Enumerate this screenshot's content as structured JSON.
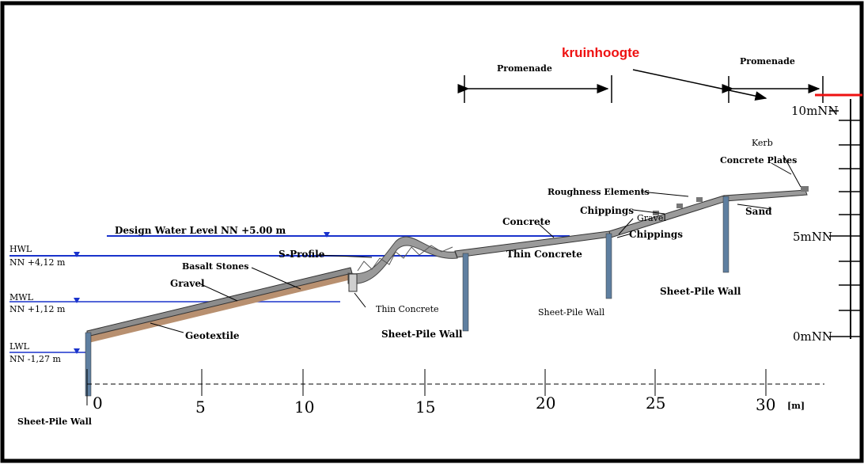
{
  "annotation": {
    "text": "kruinhoogte",
    "color": "#ee1111"
  },
  "promenades": [
    "Promenade",
    "Promenade"
  ],
  "water_levels": {
    "design": "Design Water Level NN +5.00 m",
    "hwl": [
      "HWL",
      "NN +4,12 m"
    ],
    "mwl": [
      "MWL",
      "NN +1,12 m"
    ],
    "lwl": [
      "LWL",
      "NN -1,27 m"
    ]
  },
  "labels": {
    "basalt": "Basalt Stones",
    "gravel": "Gravel",
    "geotextile": "Geotextile",
    "sprofile": "S-Profile",
    "thin_concrete_1": "Thin Concrete",
    "thin_concrete_2": "Thin Concrete",
    "concrete": "Concrete",
    "roughness": "Roughness Elements",
    "chippings_1": "Chippings",
    "chippings_2": "Chippings",
    "gravel_2": "Gravel",
    "kerb": "Kerb",
    "concrete_plates": "Concrete Plates",
    "sand": "Sand",
    "sheet_pile": [
      "Sheet-Pile Wall",
      "Sheet-Pile Wall",
      "Sheet-Pile Wall",
      "Sheet-Pile Wall"
    ]
  },
  "x_axis": {
    "ticks": [
      "0",
      "5",
      "10",
      "15",
      "20",
      "25",
      "30"
    ],
    "unit": "[m]"
  },
  "y_axis": {
    "ticks": [
      "10mNN",
      "5mNN",
      "0mNN"
    ]
  },
  "colors": {
    "water_line": "#1a33cc",
    "sheet_pile": "#5f7fa0",
    "revetment": "#9a9a9a",
    "frame": "#000000"
  }
}
